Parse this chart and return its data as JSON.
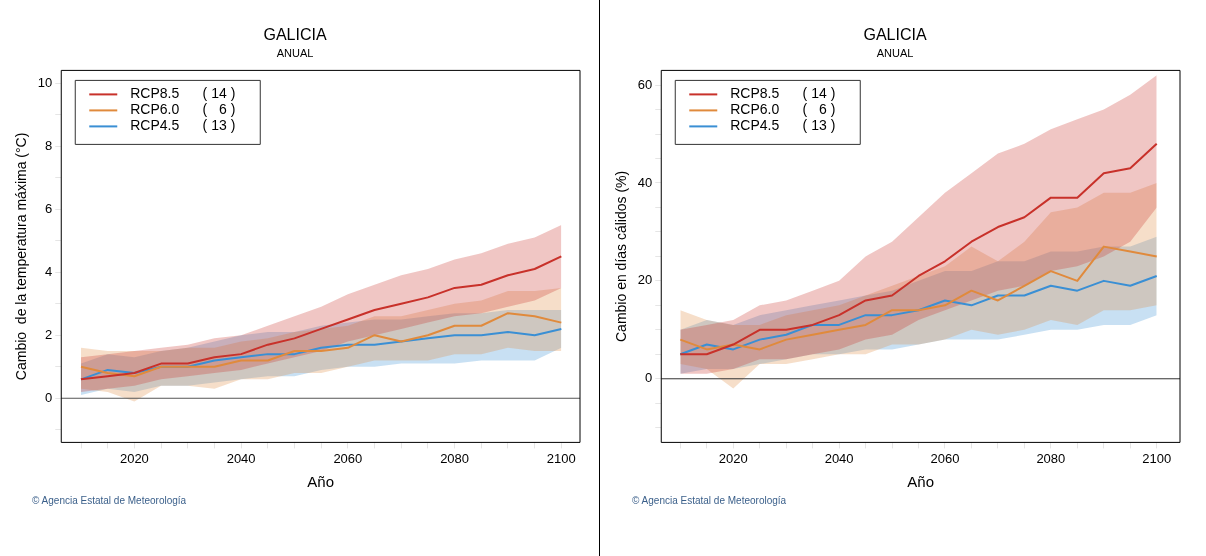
{
  "chart_data": [
    {
      "type": "line",
      "title": "GALICIA",
      "subtitle": "ANUAL",
      "xlabel": "Año",
      "ylabel": "Cambio  de la temperatura máxima (°C)",
      "x": [
        2010,
        2015,
        2020,
        2025,
        2030,
        2035,
        2040,
        2045,
        2050,
        2055,
        2060,
        2065,
        2070,
        2075,
        2080,
        2085,
        2090,
        2095,
        2100
      ],
      "series": [
        {
          "name": "RCP8.5      ( 14 )",
          "color": "#c8312a",
          "values": [
            0.6,
            0.7,
            0.8,
            1.1,
            1.1,
            1.3,
            1.4,
            1.7,
            1.9,
            2.2,
            2.5,
            2.8,
            3.0,
            3.2,
            3.5,
            3.6,
            3.9,
            4.1,
            4.5
          ],
          "lower": [
            0.2,
            0.3,
            0.4,
            0.6,
            0.7,
            0.8,
            0.9,
            1.1,
            1.3,
            1.5,
            1.8,
            2.0,
            2.2,
            2.4,
            2.6,
            2.7,
            2.9,
            3.1,
            3.5
          ],
          "upper": [
            1.3,
            1.4,
            1.5,
            1.6,
            1.7,
            1.9,
            2.0,
            2.3,
            2.6,
            2.9,
            3.3,
            3.6,
            3.9,
            4.1,
            4.4,
            4.6,
            4.9,
            5.1,
            5.5
          ]
        },
        {
          "name": "RCP6.0      (   6 )",
          "color": "#e08a3c",
          "values": [
            1.0,
            0.8,
            0.7,
            1.0,
            1.0,
            1.0,
            1.2,
            1.2,
            1.5,
            1.5,
            1.6,
            2.0,
            1.8,
            2.0,
            2.3,
            2.3,
            2.7,
            2.6,
            2.4
          ],
          "lower": [
            0.3,
            0.2,
            -0.1,
            0.4,
            0.4,
            0.3,
            0.6,
            0.6,
            0.8,
            0.8,
            1.0,
            1.2,
            1.2,
            1.2,
            1.4,
            1.4,
            1.6,
            1.5,
            1.5
          ],
          "upper": [
            1.6,
            1.5,
            1.5,
            1.5,
            1.6,
            1.6,
            1.8,
            1.9,
            2.1,
            2.2,
            2.3,
            2.6,
            2.6,
            2.8,
            3.0,
            3.1,
            3.4,
            3.4,
            3.5
          ]
        },
        {
          "name": "RCP4.5      ( 13 )",
          "color": "#3a8fd4",
          "values": [
            0.6,
            0.9,
            0.8,
            1.0,
            1.0,
            1.2,
            1.3,
            1.4,
            1.4,
            1.6,
            1.7,
            1.7,
            1.8,
            1.9,
            2.0,
            2.0,
            2.1,
            2.0,
            2.2
          ],
          "lower": [
            0.1,
            0.3,
            0.2,
            0.4,
            0.4,
            0.5,
            0.6,
            0.7,
            0.7,
            0.9,
            1.0,
            1.0,
            1.1,
            1.1,
            1.1,
            1.2,
            1.2,
            1.2,
            1.6
          ],
          "upper": [
            1.1,
            1.4,
            1.3,
            1.5,
            1.6,
            1.8,
            2.0,
            2.1,
            2.1,
            2.3,
            2.4,
            2.5,
            2.5,
            2.6,
            2.7,
            2.7,
            2.8,
            2.8,
            2.8
          ]
        }
      ],
      "xlim": [
        2006.3,
        2103.5
      ],
      "xticks": [
        {
          "value": 2010,
          "label": null
        },
        {
          "value": 2015,
          "label": null
        },
        2020,
        {
          "value": 2025,
          "label": null
        },
        {
          "value": 2030,
          "label": null
        },
        {
          "value": 2035,
          "label": null
        },
        2040,
        {
          "value": 2045,
          "label": null
        },
        {
          "value": 2050,
          "label": null
        },
        {
          "value": 2055,
          "label": null
        },
        2060,
        {
          "value": 2065,
          "label": null
        },
        {
          "value": 2070,
          "label": null
        },
        {
          "value": 2075,
          "label": null
        },
        2080,
        {
          "value": 2085,
          "label": null
        },
        {
          "value": 2090,
          "label": null
        },
        {
          "value": 2095,
          "label": null
        },
        2100
      ],
      "ylim": [
        -1.4,
        10.4
      ],
      "yticks": [
        {
          "value": -1,
          "label": null
        },
        0,
        {
          "value": 1,
          "label": null
        },
        2,
        {
          "value": 3,
          "label": null
        },
        4,
        {
          "value": 5,
          "label": null
        },
        6,
        {
          "value": 7,
          "label": null
        },
        8,
        {
          "value": 9,
          "label": null
        },
        10
      ],
      "ref_lines": [
        {
          "axis": "y",
          "value": 0,
          "color": "#555555"
        }
      ],
      "legend": "top left",
      "grid": false,
      "marker": "none",
      "line_style": "solid",
      "annotations": [
        "© Agencia Estatal de Meteorología"
      ]
    },
    {
      "type": "line",
      "title": "GALICIA",
      "subtitle": "ANUAL",
      "xlabel": "Año",
      "ylabel": "Cambio en días cálidos (%)",
      "x": [
        2010,
        2015,
        2020,
        2025,
        2030,
        2035,
        2040,
        2045,
        2050,
        2055,
        2060,
        2065,
        2070,
        2075,
        2080,
        2085,
        2090,
        2095,
        2100
      ],
      "series": [
        {
          "name": "RCP8.5      ( 14 )",
          "color": "#c8312a",
          "values": [
            5,
            5,
            7,
            10,
            10,
            11,
            13,
            16,
            17,
            21,
            24,
            28,
            31,
            33,
            37,
            37,
            42,
            43,
            48
          ],
          "lower": [
            1,
            1,
            2,
            4,
            4,
            5,
            6,
            8,
            9,
            12,
            14,
            16,
            18,
            19,
            22,
            23,
            25,
            28,
            35
          ],
          "upper": [
            10,
            11,
            12,
            15,
            16,
            18,
            20,
            25,
            28,
            33,
            38,
            42,
            46,
            48,
            51,
            53,
            55,
            58,
            62
          ]
        },
        {
          "name": "RCP6.0      (   6 )",
          "color": "#e08a3c",
          "values": [
            8,
            6,
            7,
            6,
            8,
            9,
            10,
            11,
            14,
            14,
            15,
            18,
            16,
            19,
            22,
            20,
            27,
            26,
            25
          ],
          "lower": [
            3,
            2,
            -2,
            3,
            3,
            4,
            5,
            5,
            7,
            7,
            8,
            10,
            9,
            10,
            12,
            11,
            14,
            14,
            15
          ],
          "upper": [
            14,
            12,
            11,
            11,
            13,
            14,
            15,
            17,
            19,
            21,
            23,
            27,
            24,
            28,
            34,
            35,
            38,
            38,
            40
          ]
        },
        {
          "name": "RCP4.5      ( 13 )",
          "color": "#3a8fd4",
          "values": [
            5,
            7,
            6,
            8,
            9,
            11,
            11,
            13,
            13,
            14,
            16,
            15,
            17,
            17,
            19,
            18,
            20,
            19,
            21
          ],
          "lower": [
            1,
            2,
            2,
            3,
            4,
            5,
            5,
            6,
            6,
            7,
            8,
            8,
            8,
            9,
            10,
            10,
            11,
            11,
            13
          ],
          "upper": [
            10,
            12,
            11,
            13,
            14,
            15,
            16,
            17,
            18,
            20,
            22,
            22,
            24,
            24,
            26,
            26,
            27,
            27,
            29
          ]
        }
      ],
      "xlim": [
        2006.4,
        2104.4
      ],
      "xticks": [
        {
          "value": 2010,
          "label": null
        },
        {
          "value": 2015,
          "label": null
        },
        2020,
        {
          "value": 2025,
          "label": null
        },
        {
          "value": 2030,
          "label": null
        },
        {
          "value": 2035,
          "label": null
        },
        2040,
        {
          "value": 2045,
          "label": null
        },
        {
          "value": 2050,
          "label": null
        },
        {
          "value": 2055,
          "label": null
        },
        2060,
        {
          "value": 2065,
          "label": null
        },
        {
          "value": 2070,
          "label": null
        },
        {
          "value": 2075,
          "label": null
        },
        2080,
        {
          "value": 2085,
          "label": null
        },
        {
          "value": 2090,
          "label": null
        },
        {
          "value": 2095,
          "label": null
        },
        2100
      ],
      "ylim": [
        -13,
        63
      ],
      "yticks": [
        {
          "value": -10,
          "label": null
        },
        {
          "value": -5,
          "label": null
        },
        0,
        {
          "value": 5,
          "label": null
        },
        {
          "value": 10,
          "label": null
        },
        {
          "value": 15,
          "label": null
        },
        20,
        {
          "value": 25,
          "label": null
        },
        {
          "value": 30,
          "label": null
        },
        {
          "value": 35,
          "label": null
        },
        40,
        {
          "value": 45,
          "label": null
        },
        {
          "value": 50,
          "label": null
        },
        {
          "value": 55,
          "label": null
        },
        60
      ],
      "ref_lines": [
        {
          "axis": "y",
          "value": 0,
          "color": "#333333"
        }
      ],
      "legend": "top left",
      "grid": false,
      "marker": "none",
      "line_style": "solid",
      "annotations": [
        "© Agencia Estatal de Meteorología"
      ]
    }
  ]
}
